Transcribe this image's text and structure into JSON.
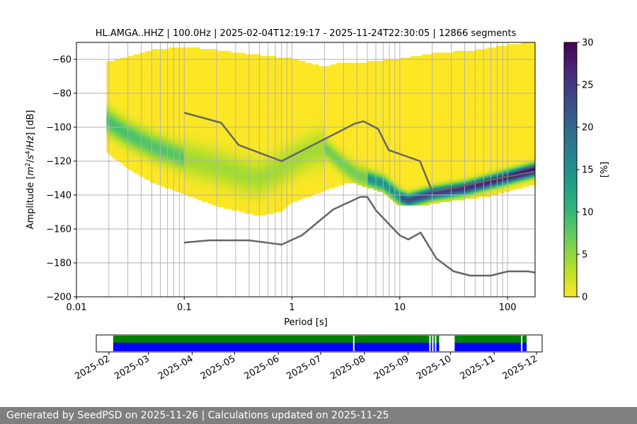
{
  "footer": "Generated by SeedPSD on 2025-11-26 | Calculations updated on 2025-11-25",
  "chart_data": {
    "type": "heatmap",
    "title": "HL.AMGA..HHZ | 100.0Hz | 2025-02-04T12:19:17 - 2025-11-24T22:30:05 | 12866 segments",
    "xlabel": "Period [s]",
    "ylabel_parts": [
      "Amplitude [",
      "m",
      "2",
      "/",
      "s",
      "4",
      "/",
      "Hz",
      "] [dB]"
    ],
    "xscale": "log",
    "xlim": [
      0.01,
      180
    ],
    "ylim": [
      -200,
      -50
    ],
    "xticks": [
      {
        "v": 0.01,
        "label": "0.01"
      },
      {
        "v": 0.1,
        "label": "0.1"
      },
      {
        "v": 1,
        "label": "1"
      },
      {
        "v": 10,
        "label": "10"
      },
      {
        "v": 100,
        "label": "100"
      }
    ],
    "yticks": [
      -60,
      -80,
      -100,
      -120,
      -140,
      -160,
      -180,
      -200
    ],
    "grid": true,
    "colorbar": {
      "label": "[%]",
      "range": [
        0,
        30
      ],
      "ticks": [
        0,
        5,
        10,
        15,
        20,
        25,
        30
      ],
      "colormap": "viridis_r",
      "stops": [
        "#fde725",
        "#b5de2b",
        "#6ece58",
        "#35b779",
        "#1f9e89",
        "#26828e",
        "#31688e",
        "#3e4989",
        "#482878",
        "#440154"
      ]
    },
    "psd_extent_period_s": [
      0.019,
      180
    ],
    "psd_upper_envelope": [
      [
        0.019,
        -62
      ],
      [
        0.03,
        -59
      ],
      [
        0.05,
        -55
      ],
      [
        0.1,
        -53
      ],
      [
        0.2,
        -55
      ],
      [
        0.5,
        -58
      ],
      [
        1,
        -60
      ],
      [
        2,
        -65
      ],
      [
        3,
        -62
      ],
      [
        5,
        -62
      ],
      [
        10,
        -60
      ],
      [
        20,
        -57
      ],
      [
        50,
        -55
      ],
      [
        100,
        -52
      ],
      [
        180,
        -50
      ]
    ],
    "psd_lower_envelope": [
      [
        0.019,
        -114
      ],
      [
        0.03,
        -124
      ],
      [
        0.05,
        -132
      ],
      [
        0.1,
        -139
      ],
      [
        0.2,
        -146
      ],
      [
        0.5,
        -152
      ],
      [
        0.8,
        -149
      ],
      [
        1,
        -144
      ],
      [
        2,
        -137
      ],
      [
        3,
        -133
      ],
      [
        4,
        -133
      ],
      [
        7,
        -138
      ],
      [
        10,
        -146
      ],
      [
        15,
        -146
      ],
      [
        30,
        -143
      ],
      [
        70,
        -140
      ],
      [
        180,
        -133
      ]
    ],
    "psd_mode_curve": [
      [
        0.019,
        -96
      ],
      [
        0.03,
        -104
      ],
      [
        0.05,
        -111
      ],
      [
        0.1,
        -118
      ],
      [
        0.2,
        -123
      ],
      [
        0.35,
        -128
      ],
      [
        0.5,
        -130
      ],
      [
        0.7,
        -126
      ],
      [
        1,
        -120
      ],
      [
        1.5,
        -114
      ],
      [
        2,
        -112
      ],
      [
        3,
        -122
      ],
      [
        4,
        -128
      ],
      [
        5,
        -130
      ],
      [
        7,
        -133
      ],
      [
        10,
        -141
      ],
      [
        12,
        -143
      ],
      [
        20,
        -139
      ],
      [
        40,
        -136
      ],
      [
        80,
        -131
      ],
      [
        120,
        -128
      ],
      [
        180,
        -125
      ]
    ],
    "nhnm": {
      "name": "NHNM",
      "points": [
        [
          0.1,
          -91.5
        ],
        [
          0.22,
          -97.4
        ],
        [
          0.32,
          -110.5
        ],
        [
          0.8,
          -120
        ],
        [
          3.8,
          -98
        ],
        [
          4.6,
          -96.5
        ],
        [
          6.3,
          -101
        ],
        [
          7.9,
          -113.5
        ],
        [
          15.4,
          -120
        ],
        [
          20,
          -138
        ],
        [
          180,
          -126
        ]
      ]
    },
    "nlnm": {
      "name": "NLNM",
      "points": [
        [
          0.1,
          -168
        ],
        [
          0.17,
          -166.7
        ],
        [
          0.4,
          -166.7
        ],
        [
          0.8,
          -169.2
        ],
        [
          1.24,
          -163.7
        ],
        [
          2.4,
          -148.6
        ],
        [
          4.3,
          -141.1
        ],
        [
          5,
          -141.1
        ],
        [
          6,
          -149
        ],
        [
          10,
          -163.8
        ],
        [
          12,
          -166.2
        ],
        [
          15.6,
          -162.1
        ],
        [
          21.9,
          -177.5
        ],
        [
          31.6,
          -185
        ],
        [
          45,
          -187.5
        ],
        [
          70,
          -187.5
        ],
        [
          101,
          -185
        ],
        [
          154,
          -185
        ],
        [
          180,
          -185.7
        ]
      ]
    },
    "availability": {
      "date_ticks": [
        "2025-02",
        "2025-03",
        "2025-04",
        "2025-05",
        "2025-06",
        "2025-07",
        "2025-08",
        "2025-09",
        "2025-10",
        "2025-11",
        "2025-12"
      ],
      "range": [
        "2025-01-23",
        "2025-12-05"
      ],
      "covered_ranges": [
        [
          "2025-02-04",
          "2025-07-24"
        ],
        [
          "2025-07-25",
          "2025-09-16"
        ],
        [
          "2025-09-17",
          "2025-09-18"
        ],
        [
          "2025-09-19",
          "2025-09-20"
        ],
        [
          "2025-09-21",
          "2025-09-23"
        ],
        [
          "2025-10-04",
          "2025-11-20"
        ],
        [
          "2025-11-21",
          "2025-11-24"
        ]
      ],
      "colors": {
        "upper": "#008000",
        "lower": "#0000ff"
      }
    }
  }
}
